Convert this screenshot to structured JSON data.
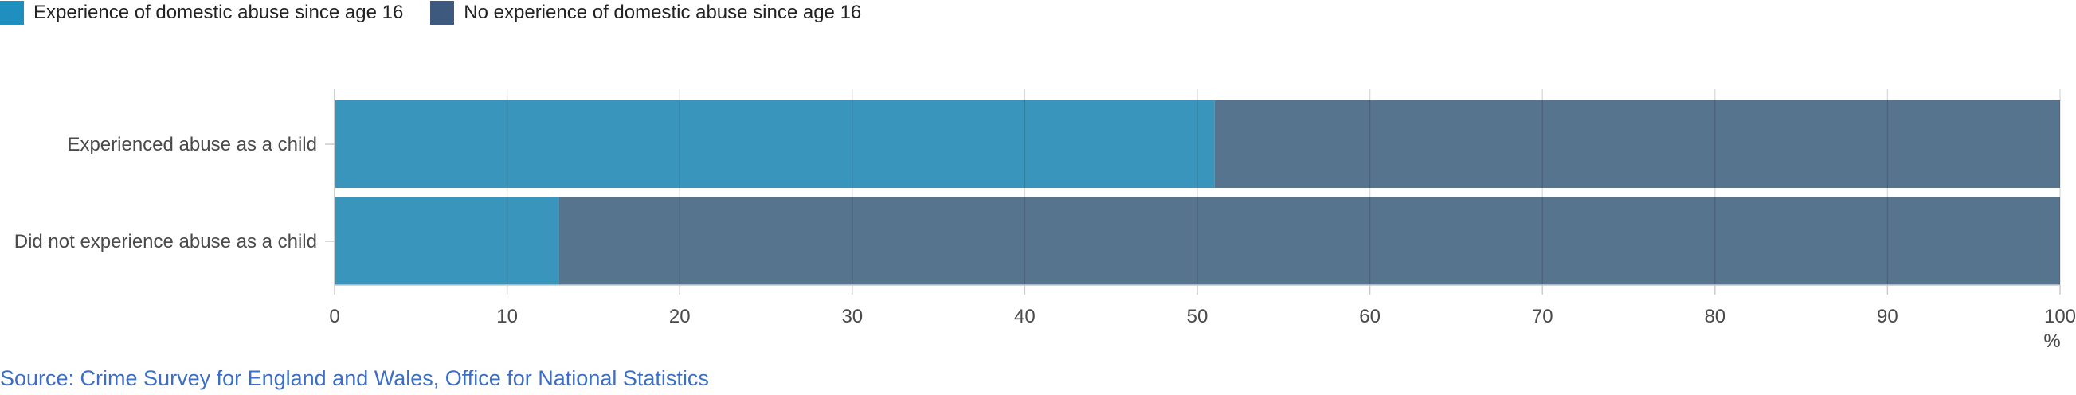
{
  "chart_data": {
    "type": "bar",
    "orientation": "horizontal",
    "stacked": true,
    "categories": [
      "Experienced abuse as a child",
      "Did not experience abuse as a child"
    ],
    "series": [
      {
        "name": "Experience of domestic abuse since age 16",
        "values": [
          51,
          13
        ],
        "color": "#3a95bd"
      },
      {
        "name": "No experience of domestic abuse since age 16",
        "values": [
          49,
          87
        ],
        "color": "#57748f"
      }
    ],
    "xlim": [
      0,
      100
    ],
    "xticks": [
      0,
      10,
      20,
      30,
      40,
      50,
      60,
      70,
      80,
      90,
      100
    ],
    "xunit": "%",
    "grid": true,
    "legend_position": "top-left"
  },
  "legend": {
    "items": [
      {
        "label": "Experience of domestic abuse since age 16",
        "color": "#1f8fbf"
      },
      {
        "label": "No experience of domestic abuse since age 16",
        "color": "#3d5a7e"
      }
    ]
  },
  "source": {
    "text": "Source: Crime Survey for England and Wales, Office for National Statistics",
    "color": "#3b6ec4"
  }
}
